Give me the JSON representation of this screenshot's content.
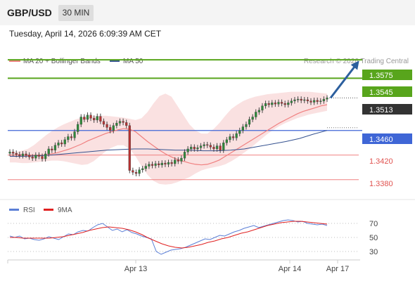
{
  "header": {
    "pair": "GBP/USD",
    "timeframe": "30 MIN",
    "timestamp": "Tuesday, April 14, 2026 6:09:39 AM CET"
  },
  "legend": {
    "ma20_label": "MA 20 + Bollinger Bands",
    "ma50_label": "MA 50",
    "ma20_color": "#f08080",
    "ma50_color": "#34518f",
    "credit": "Research © 2026 Trading Central"
  },
  "rsi_legend": {
    "rsi_label": "RSI",
    "ma_label": "9MA",
    "rsi_color": "#5b7fd6",
    "ma_color": "#e02020"
  },
  "levels": {
    "resistance_2": "1.3575",
    "resistance_1": "1.3545",
    "current": "1.3513",
    "pivot": "1.3460",
    "support_1": "1.3420",
    "support_2": "1.3380"
  },
  "chart_data": [
    {
      "type": "candlestick",
      "title": "GBP/USD",
      "x_ticks": [
        "Apr 13",
        "Apr 14",
        "Apr 17"
      ],
      "yrange": [
        1.335,
        1.359
      ],
      "grid": false,
      "legend_placement": "top-left",
      "horizontal_levels": [
        {
          "value": 1.3575,
          "color": "#58a51c",
          "kind": "resistance"
        },
        {
          "value": 1.3545,
          "color": "#58a51c",
          "kind": "resistance"
        },
        {
          "value": 1.3513,
          "color": "#333333",
          "kind": "current"
        },
        {
          "value": 1.346,
          "color": "#3f66d6",
          "kind": "pivot"
        },
        {
          "value": 1.342,
          "color": "#f08080",
          "kind": "support"
        },
        {
          "value": 1.338,
          "color": "#f08080",
          "kind": "support"
        }
      ],
      "close": [
        1.3425,
        1.3423,
        1.3421,
        1.3419,
        1.3422,
        1.342,
        1.3417,
        1.3415,
        1.342,
        1.3418,
        1.3414,
        1.3422,
        1.343,
        1.3428,
        1.3436,
        1.344,
        1.3438,
        1.3445,
        1.345,
        1.3448,
        1.3458,
        1.347,
        1.3482,
        1.3478,
        1.3485,
        1.348,
        1.3477,
        1.3483,
        1.3475,
        1.347,
        1.3465,
        1.346,
        1.3468,
        1.3472,
        1.3475,
        1.3473,
        1.3468,
        1.3395,
        1.3392,
        1.339,
        1.3396,
        1.3398,
        1.3402,
        1.3405,
        1.3403,
        1.3406,
        1.3404,
        1.3407,
        1.3405,
        1.3408,
        1.3406,
        1.3412,
        1.341,
        1.3415,
        1.3425,
        1.343,
        1.3433,
        1.343,
        1.3432,
        1.3435,
        1.3437,
        1.3436,
        1.3433,
        1.343,
        1.3435,
        1.3428,
        1.344,
        1.3445,
        1.345,
        1.3448,
        1.3455,
        1.346,
        1.3466,
        1.347,
        1.3478,
        1.3482,
        1.349,
        1.3493,
        1.35,
        1.3504,
        1.3502,
        1.3505,
        1.3503,
        1.3506,
        1.3504,
        1.3502,
        1.3505,
        1.3508,
        1.351,
        1.3511,
        1.3509,
        1.351,
        1.3508,
        1.3506,
        1.3509,
        1.3507,
        1.3508,
        1.3511,
        1.3513
      ],
      "ma20": [
        1.342,
        1.342,
        1.342,
        1.3419,
        1.3419,
        1.3419,
        1.342,
        1.3422,
        1.3424,
        1.3427,
        1.343,
        1.3434,
        1.3438,
        1.3443,
        1.3447,
        1.3451,
        1.3455,
        1.3458,
        1.3461,
        1.3463,
        1.3462,
        1.3458,
        1.345,
        1.3442,
        1.3435,
        1.3428,
        1.3422,
        1.3417,
        1.3413,
        1.341,
        1.3407,
        1.3405,
        1.3404,
        1.3405,
        1.3408,
        1.3412,
        1.3418,
        1.3424,
        1.343,
        1.3436,
        1.3442,
        1.3448,
        1.3454,
        1.346,
        1.3466,
        1.3472,
        1.3477,
        1.3482,
        1.3487,
        1.3491,
        1.3494,
        1.3497,
        1.35,
        1.3502
      ],
      "ma50": [
        1.3418,
        1.3418,
        1.3419,
        1.342,
        1.3422,
        1.3424,
        1.3426,
        1.3428,
        1.3429,
        1.343,
        1.343,
        1.3429,
        1.3428,
        1.3428,
        1.3427,
        1.3427,
        1.3428,
        1.343,
        1.3434,
        1.3438,
        1.3442,
        1.3447,
        1.3454,
        1.346
      ],
      "bollinger_upper": [
        1.3425,
        1.3425,
        1.3427,
        1.343,
        1.3436,
        1.3444,
        1.3452,
        1.3459,
        1.3465,
        1.347,
        1.3474,
        1.3478,
        1.3481,
        1.3482,
        1.3483,
        1.3484,
        1.3484,
        1.3483,
        1.3482,
        1.3481,
        1.3479,
        1.3477,
        1.348,
        1.349,
        1.3504,
        1.3516,
        1.352,
        1.3515,
        1.35,
        1.3485,
        1.347,
        1.346,
        1.3455,
        1.3455,
        1.3462,
        1.3472,
        1.3484,
        1.3495,
        1.3502,
        1.3508,
        1.3512,
        1.3515,
        1.3517,
        1.3519,
        1.352,
        1.3521,
        1.3522,
        1.3523,
        1.3523,
        1.3523,
        1.3523,
        1.3522,
        1.3521,
        1.352
      ],
      "bollinger_lower": [
        1.3408,
        1.3408,
        1.3407,
        1.3407,
        1.3408,
        1.3409,
        1.341,
        1.3411,
        1.3411,
        1.341,
        1.3408,
        1.3406,
        1.3404,
        1.3405,
        1.341,
        1.3418,
        1.3426,
        1.3432,
        1.3436,
        1.3436,
        1.343,
        1.3418,
        1.3402,
        1.3388,
        1.3378,
        1.3373,
        1.3372,
        1.3373,
        1.3376,
        1.338,
        1.3384,
        1.339,
        1.3395,
        1.3398,
        1.34,
        1.3402,
        1.3405,
        1.341,
        1.3416,
        1.3423,
        1.343,
        1.3438,
        1.3446,
        1.3454,
        1.3461,
        1.3467,
        1.3472,
        1.3476,
        1.348,
        1.3483,
        1.3486,
        1.3488,
        1.349,
        1.3492
      ],
      "forecast_arrow": {
        "from": 1.3513,
        "to": 1.3575
      }
    },
    {
      "type": "line",
      "title": "RSI",
      "yticks": [
        30,
        50,
        70
      ],
      "yrange": [
        20,
        80
      ],
      "reference_lines": [
        30,
        50,
        70
      ],
      "series": [
        {
          "name": "RSI",
          "values": [
            52,
            50,
            52,
            48,
            49,
            47,
            46,
            48,
            51,
            49,
            47,
            51,
            55,
            54,
            58,
            60,
            59,
            64,
            68,
            70,
            65,
            60,
            62,
            58,
            61,
            57,
            55,
            52,
            50,
            48,
            30,
            26,
            29,
            32,
            33,
            34,
            36,
            39,
            42,
            45,
            48,
            47,
            50,
            53,
            52,
            55,
            58,
            60,
            63,
            65,
            67,
            64,
            66,
            68,
            70,
            72,
            74,
            75,
            74,
            72,
            73,
            70,
            69,
            68,
            69,
            67
          ]
        },
        {
          "name": "9MA",
          "values": [
            50,
            50,
            49,
            49,
            49,
            49,
            49,
            50,
            51,
            53,
            55,
            57,
            60,
            62,
            64,
            65,
            64,
            63,
            61,
            58,
            54,
            49,
            45,
            41,
            38,
            36,
            35,
            36,
            38,
            40,
            43,
            45,
            48,
            50,
            53,
            56,
            58,
            61,
            64,
            67,
            69,
            71,
            72,
            73,
            73,
            72,
            71,
            70,
            69
          ]
        }
      ]
    }
  ]
}
